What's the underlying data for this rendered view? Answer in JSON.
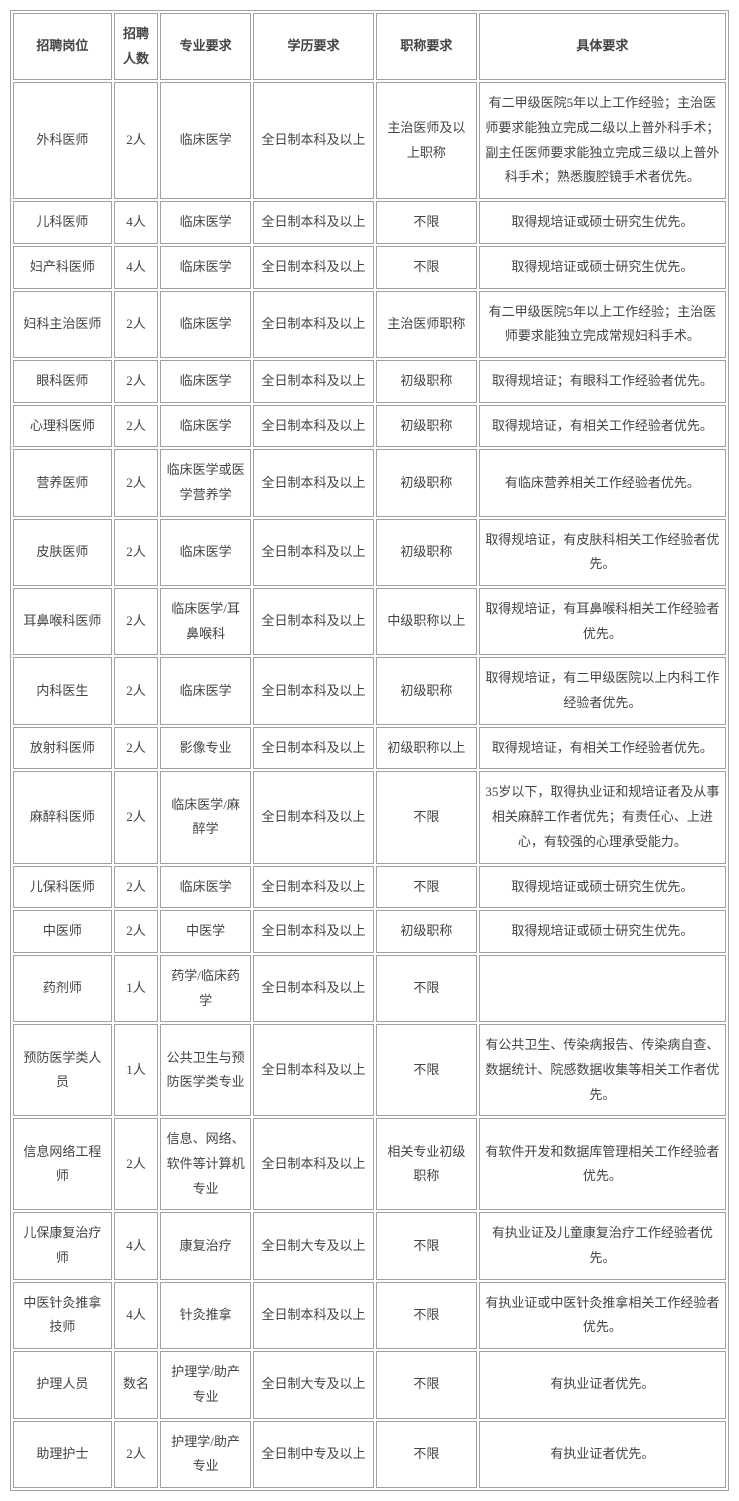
{
  "table": {
    "headers": {
      "position": "招聘岗位",
      "count": "招聘人数",
      "major": "专业要求",
      "education": "学历要求",
      "title": "职称要求",
      "requirement": "具体要求"
    },
    "rows": [
      {
        "position": "外科医师",
        "count": "2人",
        "major": "临床医学",
        "education": "全日制本科及以上",
        "title": "主治医师及以上职称",
        "requirement": "有二甲级医院5年以上工作经验；主治医师要求能独立完成二级以上普外科手术；副主任医师要求能独立完成三级以上普外科手术；熟悉腹腔镜手术者优先。"
      },
      {
        "position": "儿科医师",
        "count": "4人",
        "major": "临床医学",
        "education": "全日制本科及以上",
        "title": "不限",
        "requirement": "取得规培证或硕士研究生优先。"
      },
      {
        "position": "妇产科医师",
        "count": "4人",
        "major": "临床医学",
        "education": "全日制本科及以上",
        "title": "不限",
        "requirement": "取得规培证或硕士研究生优先。"
      },
      {
        "position": "妇科主治医师",
        "count": "2人",
        "major": "临床医学",
        "education": "全日制本科及以上",
        "title": "主治医师职称",
        "requirement": "有二甲级医院5年以上工作经验；主治医师要求能独立完成常规妇科手术。"
      },
      {
        "position": "眼科医师",
        "count": "2人",
        "major": "临床医学",
        "education": "全日制本科及以上",
        "title": "初级职称",
        "requirement": "取得规培证；有眼科工作经验者优先。"
      },
      {
        "position": "心理科医师",
        "count": "2人",
        "major": "临床医学",
        "education": "全日制本科及以上",
        "title": "初级职称",
        "requirement": "取得规培证，有相关工作经验者优先。"
      },
      {
        "position": "营养医师",
        "count": "2人",
        "major": "临床医学或医学营养学",
        "education": "全日制本科及以上",
        "title": "初级职称",
        "requirement": "有临床营养相关工作经验者优先。"
      },
      {
        "position": "皮肤医师",
        "count": "2人",
        "major": "临床医学",
        "education": "全日制本科及以上",
        "title": "初级职称",
        "requirement": "取得规培证，有皮肤科相关工作经验者优先。"
      },
      {
        "position": "耳鼻喉科医师",
        "count": "2人",
        "major": "临床医学/耳鼻喉科",
        "education": "全日制本科及以上",
        "title": "中级职称以上",
        "requirement": "取得规培证，有耳鼻喉科相关工作经验者优先。"
      },
      {
        "position": "内科医生",
        "count": "2人",
        "major": "临床医学",
        "education": "全日制本科及以上",
        "title": "初级职称",
        "requirement": "取得规培证，有二甲级医院以上内科工作经验者优先。"
      },
      {
        "position": "放射科医师",
        "count": "2人",
        "major": "影像专业",
        "education": "全日制本科及以上",
        "title": "初级职称以上",
        "requirement": "取得规培证，有相关工作经验者优先。"
      },
      {
        "position": "麻醉科医师",
        "count": "2人",
        "major": "临床医学/麻醉学",
        "education": "全日制本科及以上",
        "title": "不限",
        "requirement": "35岁以下，取得执业证和规培证者及从事相关麻醉工作者优先；有责任心、上进心，有较强的心理承受能力。"
      },
      {
        "position": "儿保科医师",
        "count": "2人",
        "major": "临床医学",
        "education": "全日制本科及以上",
        "title": "不限",
        "requirement": "取得规培证或硕士研究生优先。"
      },
      {
        "position": "中医师",
        "count": "2人",
        "major": "中医学",
        "education": "全日制本科及以上",
        "title": "初级职称",
        "requirement": "取得规培证或硕士研究生优先。"
      },
      {
        "position": "药剂师",
        "count": "1人",
        "major": "药学/临床药学",
        "education": "全日制本科及以上",
        "title": "不限",
        "requirement": ""
      },
      {
        "position": "预防医学类人员",
        "count": "1人",
        "major": "公共卫生与预防医学类专业",
        "education": "全日制本科及以上",
        "title": "不限",
        "requirement": "有公共卫生、传染病报告、传染病自查、数据统计、院感数据收集等相关工作者优先。"
      },
      {
        "position": "信息网络工程师",
        "count": "2人",
        "major": "信息、网络、软件等计算机专业",
        "education": "全日制本科及以上",
        "title": "相关专业初级职称",
        "requirement": "有软件开发和数据库管理相关工作经验者优先。"
      },
      {
        "position": "儿保康复治疗师",
        "count": "4人",
        "major": "康复治疗",
        "education": "全日制大专及以上",
        "title": "不限",
        "requirement": "有执业证及儿童康复治疗工作经验者优先。"
      },
      {
        "position": "中医针灸推拿技师",
        "count": "4人",
        "major": "针灸推拿",
        "education": "全日制本科及以上",
        "title": "不限",
        "requirement": "有执业证或中医针灸推拿相关工作经验者优先。"
      },
      {
        "position": "护理人员",
        "count": "数名",
        "major": "护理学/助产专业",
        "education": "全日制大专及以上",
        "title": "不限",
        "requirement": "有执业证者优先。"
      },
      {
        "position": "助理护士",
        "count": "2人",
        "major": "护理学/助产专业",
        "education": "全日制中专及以上",
        "title": "不限",
        "requirement": "有执业证者优先。"
      }
    ]
  }
}
